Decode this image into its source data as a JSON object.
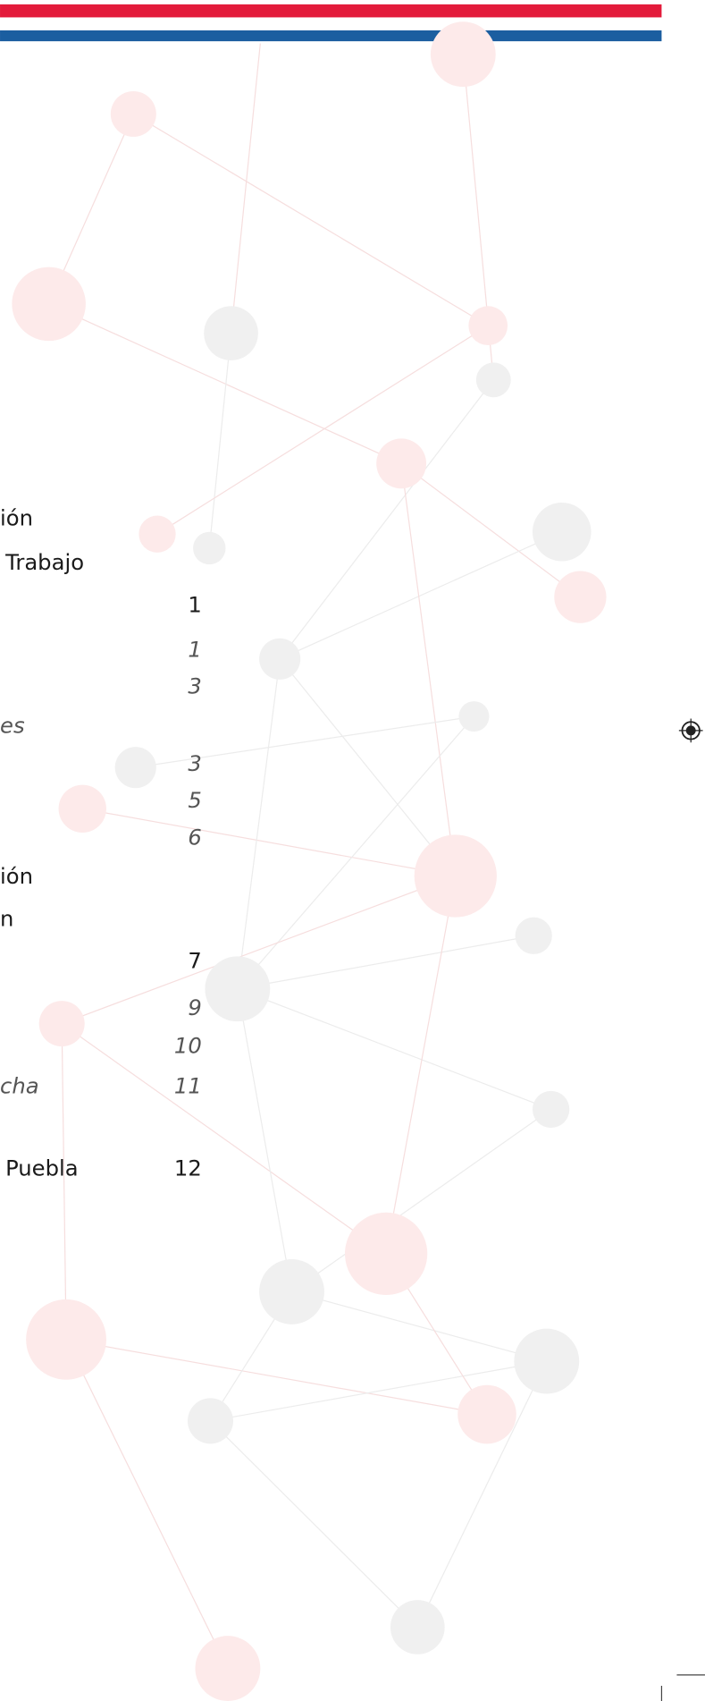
{
  "toc": {
    "entries": [
      {
        "text": "ión"
      },
      {
        "text": "Trabajo"
      },
      {
        "page": "1"
      },
      {
        "page": "1",
        "italic": true
      },
      {
        "page": "3",
        "italic": true
      },
      {
        "text": "es",
        "italic": true
      },
      {
        "page": "3",
        "italic": true
      },
      {
        "page": "5",
        "italic": true
      },
      {
        "page": "6",
        "italic": true
      },
      {
        "text": "ión"
      },
      {
        "text": "n"
      },
      {
        "page": "7"
      },
      {
        "page": "9",
        "italic": true
      },
      {
        "page": "10",
        "italic": true
      },
      {
        "text": "cha",
        "page": "11",
        "italic": true
      },
      {
        "text": "Puebla",
        "page": "12"
      }
    ]
  }
}
